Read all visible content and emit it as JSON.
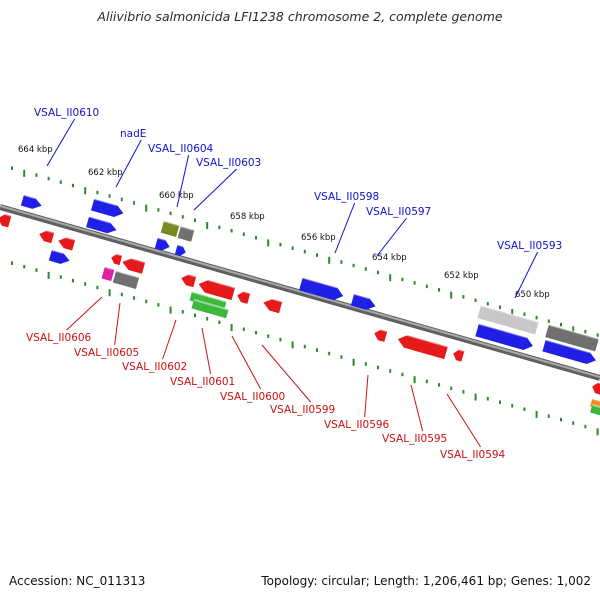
{
  "title": "Aliivibrio salmonicida LFI1238 chromosome 2, complete genome",
  "footer": {
    "accession": "Accession: NC_011313",
    "summary": "Topology: circular; Length: 1,206,461 bp; Genes: 1,002"
  },
  "colors": {
    "backbone": "#8c8c8c",
    "tick": "#2a8a2a",
    "top_label": "#1010cc",
    "bottom_label": "#cc1010",
    "forward_feature": "#1f1fe6",
    "reverse_feature": "#e61a1a",
    "grey_feature": "#707070",
    "light_grey_feature": "#c8c8c8",
    "olive_feature": "#7a8a20",
    "green_feature": "#3cb83c",
    "magenta_feature": "#e020a0",
    "orange_feature": "#f08c1e"
  },
  "kbp_labels": [
    "664 kbp",
    "662 kbp",
    "660 kbp",
    "658 kbp",
    "656 kbp",
    "654 kbp",
    "652 kbp",
    "650 kbp"
  ],
  "top_labels": [
    "VSAL_II0610",
    "nadE",
    "VSAL_II0604",
    "VSAL_II0603",
    "VSAL_II0598",
    "VSAL_II0597",
    "VSAL_II0593"
  ],
  "bottom_labels": [
    "VSAL_II0606",
    "VSAL_II0605",
    "VSAL_II0602",
    "VSAL_II0601",
    "VSAL_II0600",
    "VSAL_II0599",
    "VSAL_II0596",
    "VSAL_II0595",
    "VSAL_II0594"
  ]
}
